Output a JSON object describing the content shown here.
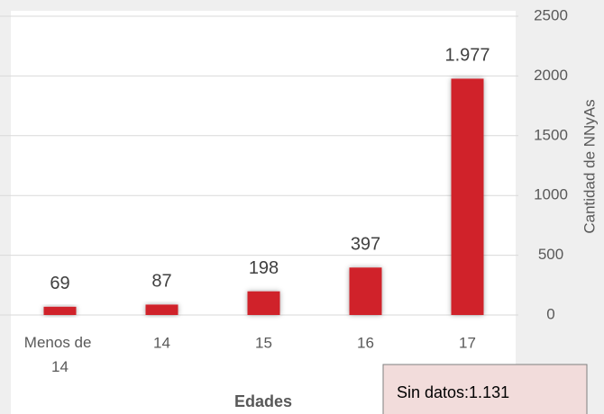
{
  "chart_data": {
    "type": "bar",
    "categories": [
      "Menos de 14",
      "14",
      "15",
      "16",
      "17"
    ],
    "values": [
      69,
      87,
      198,
      397,
      1977
    ],
    "value_labels": [
      "69",
      "87",
      "198",
      "397",
      "1.977"
    ],
    "color": "#d0232b",
    "ylim": [
      0,
      2500
    ],
    "yticks": [
      0,
      500,
      1000,
      1500,
      2000,
      2500
    ],
    "grid": true,
    "x_label": "Edades",
    "y_label": "Cantidad de NNyAs",
    "annotation": "Sin datos:1.131"
  }
}
